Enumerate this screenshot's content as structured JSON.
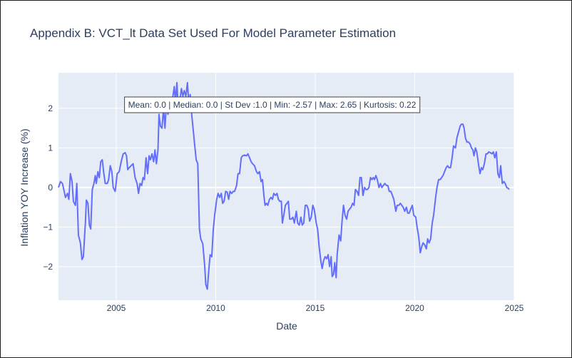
{
  "chart_data": {
    "type": "line",
    "title": "Appendix B: VCT_lt Data Set Used For Model Parameter Estimation",
    "xlabel": "Date",
    "ylabel": "Inflation YOY Increase (%)",
    "xlim": [
      2002.1,
      2025.0
    ],
    "ylim": [
      -2.85,
      2.9
    ],
    "x_ticks": [
      2005,
      2010,
      2015,
      2020,
      2025
    ],
    "y_ticks": [
      -2,
      -1,
      0,
      1,
      2
    ],
    "grid": true,
    "legend": "none",
    "annotation": "Mean: 0.0 | Median: 0.0 | St Dev :1.0 | Min: -2.57 | Max: 2.65 | Kurtosis: 0.22",
    "colors": {
      "plot_bg": "#e5ecf6",
      "line": "#636efa",
      "grid": "#ffffff",
      "text": "#2a3f5f"
    },
    "series": [
      {
        "points": [
          [
            2002.1,
            0.0
          ],
          [
            2002.2,
            0.15
          ],
          [
            2002.3,
            0.1
          ],
          [
            2002.45,
            -0.25
          ],
          [
            2002.55,
            -0.15
          ],
          [
            2002.62,
            -0.3
          ],
          [
            2002.7,
            0.35
          ],
          [
            2002.78,
            0.15
          ],
          [
            2002.85,
            -0.35
          ],
          [
            2002.95,
            -0.45
          ],
          [
            2003.02,
            0.1
          ],
          [
            2003.1,
            -1.2
          ],
          [
            2003.2,
            -1.4
          ],
          [
            2003.28,
            -1.82
          ],
          [
            2003.35,
            -1.75
          ],
          [
            2003.45,
            -0.9
          ],
          [
            2003.5,
            -0.32
          ],
          [
            2003.58,
            -0.4
          ],
          [
            2003.65,
            -0.95
          ],
          [
            2003.72,
            -1.05
          ],
          [
            2003.8,
            -0.05
          ],
          [
            2003.88,
            0.1
          ],
          [
            2003.95,
            0.3
          ],
          [
            2004.0,
            0.1
          ],
          [
            2004.08,
            0.4
          ],
          [
            2004.15,
            0.25
          ],
          [
            2004.22,
            0.65
          ],
          [
            2004.3,
            0.7
          ],
          [
            2004.38,
            0.35
          ],
          [
            2004.45,
            0.1
          ],
          [
            2004.55,
            0.1
          ],
          [
            2004.62,
            0.2
          ],
          [
            2004.7,
            0.55
          ],
          [
            2004.78,
            0.4
          ],
          [
            2004.85,
            0.0
          ],
          [
            2004.95,
            -0.1
          ],
          [
            2005.05,
            0.35
          ],
          [
            2005.15,
            0.4
          ],
          [
            2005.25,
            0.65
          ],
          [
            2005.35,
            0.85
          ],
          [
            2005.45,
            0.88
          ],
          [
            2005.52,
            0.8
          ],
          [
            2005.58,
            0.45
          ],
          [
            2005.65,
            0.5
          ],
          [
            2005.75,
            0.55
          ],
          [
            2005.85,
            0.6
          ],
          [
            2005.95,
            0.25
          ],
          [
            2006.05,
            0.1
          ],
          [
            2006.12,
            -0.15
          ],
          [
            2006.2,
            0.1
          ],
          [
            2006.28,
            0.05
          ],
          [
            2006.35,
            0.25
          ],
          [
            2006.42,
            0.2
          ],
          [
            2006.5,
            0.75
          ],
          [
            2006.58,
            0.35
          ],
          [
            2006.65,
            0.8
          ],
          [
            2006.72,
            0.7
          ],
          [
            2006.8,
            0.85
          ],
          [
            2006.88,
            0.65
          ],
          [
            2006.95,
            0.95
          ],
          [
            2007.02,
            0.6
          ],
          [
            2007.1,
            0.95
          ],
          [
            2007.15,
            1.85
          ],
          [
            2007.22,
            1.55
          ],
          [
            2007.3,
            1.5
          ],
          [
            2007.38,
            2.0
          ],
          [
            2007.45,
            1.5
          ],
          [
            2007.52,
            2.1
          ],
          [
            2007.6,
            1.85
          ],
          [
            2007.68,
            2.2
          ],
          [
            2007.75,
            2.0
          ],
          [
            2007.85,
            2.3
          ],
          [
            2007.92,
            2.55
          ],
          [
            2007.98,
            2.15
          ],
          [
            2008.05,
            2.65
          ],
          [
            2008.12,
            2.0
          ],
          [
            2008.2,
            2.2
          ],
          [
            2008.28,
            2.5
          ],
          [
            2008.35,
            2.3
          ],
          [
            2008.42,
            2.45
          ],
          [
            2008.5,
            2.3
          ],
          [
            2008.58,
            2.65
          ],
          [
            2008.65,
            2.1
          ],
          [
            2008.72,
            2.35
          ],
          [
            2008.8,
            1.8
          ],
          [
            2008.88,
            1.4
          ],
          [
            2008.95,
            1.05
          ],
          [
            2009.02,
            0.7
          ],
          [
            2009.1,
            0.6
          ],
          [
            2009.18,
            -1.05
          ],
          [
            2009.25,
            -1.3
          ],
          [
            2009.35,
            -1.42
          ],
          [
            2009.45,
            -2.0
          ],
          [
            2009.5,
            -2.45
          ],
          [
            2009.58,
            -2.57
          ],
          [
            2009.65,
            -2.1
          ],
          [
            2009.72,
            -1.7
          ],
          [
            2009.8,
            -1.75
          ],
          [
            2009.88,
            -1.05
          ],
          [
            2009.95,
            -0.7
          ],
          [
            2010.05,
            -0.3
          ],
          [
            2010.12,
            -0.15
          ],
          [
            2010.2,
            -0.25
          ],
          [
            2010.28,
            -0.15
          ],
          [
            2010.35,
            -0.4
          ],
          [
            2010.42,
            -0.35
          ],
          [
            2010.5,
            -0.1
          ],
          [
            2010.58,
            -0.12
          ],
          [
            2010.65,
            -0.3
          ],
          [
            2010.72,
            -0.1
          ],
          [
            2010.8,
            -0.15
          ],
          [
            2010.88,
            -0.1
          ],
          [
            2010.95,
            -0.1
          ],
          [
            2011.05,
            0.05
          ],
          [
            2011.12,
            0.35
          ],
          [
            2011.2,
            0.35
          ],
          [
            2011.28,
            0.75
          ],
          [
            2011.35,
            0.8
          ],
          [
            2011.45,
            0.82
          ],
          [
            2011.55,
            0.8
          ],
          [
            2011.62,
            0.85
          ],
          [
            2011.7,
            0.75
          ],
          [
            2011.78,
            0.65
          ],
          [
            2011.85,
            0.6
          ],
          [
            2011.95,
            0.55
          ],
          [
            2012.05,
            0.4
          ],
          [
            2012.12,
            0.35
          ],
          [
            2012.2,
            0.4
          ],
          [
            2012.28,
            0.15
          ],
          [
            2012.35,
            0.2
          ],
          [
            2012.42,
            -0.2
          ],
          [
            2012.48,
            -0.45
          ],
          [
            2012.55,
            -0.4
          ],
          [
            2012.62,
            -0.45
          ],
          [
            2012.7,
            -0.3
          ],
          [
            2012.78,
            -0.25
          ],
          [
            2012.85,
            -0.3
          ],
          [
            2012.92,
            -0.15
          ],
          [
            2013.0,
            -0.2
          ],
          [
            2013.08,
            -0.15
          ],
          [
            2013.15,
            -0.3
          ],
          [
            2013.22,
            -0.35
          ],
          [
            2013.3,
            -0.35
          ],
          [
            2013.35,
            -0.9
          ],
          [
            2013.42,
            -0.7
          ],
          [
            2013.5,
            -0.45
          ],
          [
            2013.58,
            -0.4
          ],
          [
            2013.65,
            -0.35
          ],
          [
            2013.72,
            -0.8
          ],
          [
            2013.8,
            -0.8
          ],
          [
            2013.88,
            -0.75
          ],
          [
            2013.95,
            -0.9
          ],
          [
            2014.05,
            -0.6
          ],
          [
            2014.12,
            -0.9
          ],
          [
            2014.2,
            -0.95
          ],
          [
            2014.28,
            -0.75
          ],
          [
            2014.35,
            -0.95
          ],
          [
            2014.42,
            -0.9
          ],
          [
            2014.5,
            -0.45
          ],
          [
            2014.58,
            -0.45
          ],
          [
            2014.65,
            -0.55
          ],
          [
            2014.72,
            -0.85
          ],
          [
            2014.8,
            -0.75
          ],
          [
            2014.88,
            -0.45
          ],
          [
            2014.95,
            -0.55
          ],
          [
            2015.05,
            -0.9
          ],
          [
            2015.12,
            -1.05
          ],
          [
            2015.2,
            -1.5
          ],
          [
            2015.28,
            -1.85
          ],
          [
            2015.35,
            -2.05
          ],
          [
            2015.42,
            -1.85
          ],
          [
            2015.5,
            -1.75
          ],
          [
            2015.58,
            -1.8
          ],
          [
            2015.65,
            -1.7
          ],
          [
            2015.72,
            -2.0
          ],
          [
            2015.8,
            -1.75
          ],
          [
            2015.85,
            -2.25
          ],
          [
            2015.92,
            -2.2
          ],
          [
            2015.98,
            -1.9
          ],
          [
            2016.05,
            -2.28
          ],
          [
            2016.1,
            -1.7
          ],
          [
            2016.2,
            -1.2
          ],
          [
            2016.28,
            -1.35
          ],
          [
            2016.35,
            -0.85
          ],
          [
            2016.42,
            -0.45
          ],
          [
            2016.5,
            -0.7
          ],
          [
            2016.58,
            -0.8
          ],
          [
            2016.65,
            -0.6
          ],
          [
            2016.72,
            -0.55
          ],
          [
            2016.8,
            -0.5
          ],
          [
            2016.88,
            -0.4
          ],
          [
            2016.95,
            -0.45
          ],
          [
            2017.02,
            -0.05
          ],
          [
            2017.1,
            -0.1
          ],
          [
            2017.18,
            -0.2
          ],
          [
            2017.25,
            0.25
          ],
          [
            2017.32,
            0.25
          ],
          [
            2017.4,
            -0.2
          ],
          [
            2017.48,
            0.0
          ],
          [
            2017.55,
            -0.05
          ],
          [
            2017.62,
            -0.05
          ],
          [
            2017.7,
            0.0
          ],
          [
            2017.78,
            0.25
          ],
          [
            2017.85,
            0.2
          ],
          [
            2017.92,
            0.25
          ],
          [
            2017.98,
            0.2
          ],
          [
            2018.05,
            0.3
          ],
          [
            2018.12,
            0.2
          ],
          [
            2018.2,
            0.0
          ],
          [
            2018.28,
            0.1
          ],
          [
            2018.35,
            0.0
          ],
          [
            2018.42,
            0.05
          ],
          [
            2018.5,
            0.1
          ],
          [
            2018.58,
            0.05
          ],
          [
            2018.65,
            0.05
          ],
          [
            2018.72,
            -0.1
          ],
          [
            2018.8,
            -0.1
          ],
          [
            2018.88,
            -0.2
          ],
          [
            2018.95,
            -0.3
          ],
          [
            2019.05,
            -0.6
          ],
          [
            2019.12,
            -0.45
          ],
          [
            2019.2,
            -0.45
          ],
          [
            2019.28,
            -0.4
          ],
          [
            2019.35,
            -0.45
          ],
          [
            2019.42,
            -0.5
          ],
          [
            2019.5,
            -0.6
          ],
          [
            2019.58,
            -0.5
          ],
          [
            2019.65,
            -0.65
          ],
          [
            2019.72,
            -0.65
          ],
          [
            2019.8,
            -0.55
          ],
          [
            2019.88,
            -0.45
          ],
          [
            2019.95,
            -0.7
          ],
          [
            2020.05,
            -0.75
          ],
          [
            2020.12,
            -1.0
          ],
          [
            2020.2,
            -1.25
          ],
          [
            2020.28,
            -1.65
          ],
          [
            2020.35,
            -1.5
          ],
          [
            2020.42,
            -1.4
          ],
          [
            2020.5,
            -1.45
          ],
          [
            2020.58,
            -1.55
          ],
          [
            2020.65,
            -1.3
          ],
          [
            2020.72,
            -1.4
          ],
          [
            2020.8,
            -1.3
          ],
          [
            2020.88,
            -0.9
          ],
          [
            2020.95,
            -0.7
          ],
          [
            2021.05,
            -0.25
          ],
          [
            2021.12,
            0.0
          ],
          [
            2021.2,
            0.2
          ],
          [
            2021.28,
            0.2
          ],
          [
            2021.35,
            0.25
          ],
          [
            2021.42,
            0.3
          ],
          [
            2021.5,
            0.4
          ],
          [
            2021.58,
            0.5
          ],
          [
            2021.65,
            0.55
          ],
          [
            2021.72,
            0.5
          ],
          [
            2021.8,
            0.5
          ],
          [
            2021.88,
            0.75
          ],
          [
            2021.95,
            1.05
          ],
          [
            2022.05,
            1.0
          ],
          [
            2022.12,
            1.25
          ],
          [
            2022.2,
            1.4
          ],
          [
            2022.28,
            1.55
          ],
          [
            2022.35,
            1.6
          ],
          [
            2022.42,
            1.6
          ],
          [
            2022.48,
            1.5
          ],
          [
            2022.55,
            1.25
          ],
          [
            2022.62,
            1.15
          ],
          [
            2022.7,
            1.15
          ],
          [
            2022.78,
            1.1
          ],
          [
            2022.85,
            1.0
          ],
          [
            2022.92,
            0.95
          ],
          [
            2022.98,
            0.8
          ],
          [
            2023.05,
            1.0
          ],
          [
            2023.12,
            0.9
          ],
          [
            2023.2,
            0.6
          ],
          [
            2023.28,
            0.35
          ],
          [
            2023.35,
            0.5
          ],
          [
            2023.42,
            0.45
          ],
          [
            2023.5,
            0.6
          ],
          [
            2023.58,
            0.85
          ],
          [
            2023.65,
            0.85
          ],
          [
            2023.72,
            0.9
          ],
          [
            2023.8,
            0.88
          ],
          [
            2023.88,
            0.85
          ],
          [
            2023.95,
            0.9
          ],
          [
            2024.02,
            0.75
          ],
          [
            2024.1,
            0.9
          ],
          [
            2024.18,
            0.35
          ],
          [
            2024.25,
            0.25
          ],
          [
            2024.32,
            0.55
          ],
          [
            2024.4,
            0.1
          ],
          [
            2024.48,
            0.15
          ],
          [
            2024.55,
            0.1
          ],
          [
            2024.62,
            0.0
          ],
          [
            2024.7,
            -0.02
          ],
          [
            2024.75,
            -0.05
          ]
        ]
      }
    ]
  }
}
